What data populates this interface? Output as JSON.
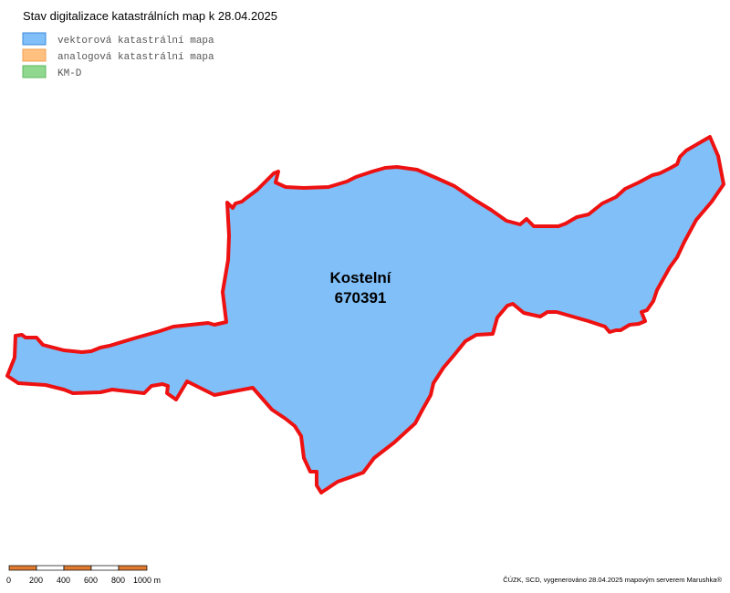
{
  "title": "Stav digitalizace katastrálních map k 28.04.2025",
  "legend": [
    {
      "label": "vektorová katastrální mapa",
      "color": "#80bff8"
    },
    {
      "label": "analogová katastrální mapa",
      "color": "#ffc080"
    },
    {
      "label": "KM-D",
      "color": "#90d890"
    }
  ],
  "area": {
    "name": "Kostelní",
    "code": "670391"
  },
  "scale_labels": [
    "0",
    "200",
    "400",
    "600",
    "800",
    "1000 m"
  ],
  "credit": "ČÚZK, SCD, vygenerováno 28.04.2025 mapovým serverem Marushka®"
}
